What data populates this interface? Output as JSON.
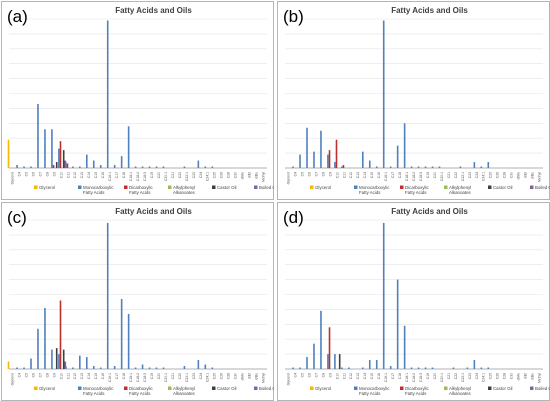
{
  "categories": [
    "Glycerol",
    "C4",
    "C5",
    "C6",
    "C7",
    "C8",
    "C9",
    "C10",
    "C11",
    "C12",
    "C13",
    "C14",
    "C15",
    "C16",
    "C16:1",
    "C17",
    "C18",
    "C18:1",
    "C18:2",
    "C18:3",
    "C19",
    "C20",
    "C20:1",
    "C21",
    "C22",
    "C22:1",
    "C23",
    "C24",
    "C24:1",
    "C25",
    "C26",
    "C28",
    "C30",
    "diMe",
    "diEt",
    "diBu",
    "Methyl"
  ],
  "legend": [
    {
      "name": "Glycerol",
      "color": "#f5b800"
    },
    {
      "name": "Monocarboxylic Fatty Acids",
      "color": "#4f81bd"
    },
    {
      "name": "Dicarboxylic Fatty Acids",
      "color": "#c0302b"
    },
    {
      "name": "Alkylphenyl Alkanoates",
      "color": "#9bbb59"
    },
    {
      "name": "Castor Oil",
      "color": "#3f3f3f"
    },
    {
      "name": "Boiled Oils",
      "color": "#8064a2"
    }
  ],
  "chart_data": [
    {
      "type": "bar",
      "title": "Fatty Acids and Oils",
      "panel_label": "(a)",
      "series": [
        {
          "name": "Glycerol",
          "values": [
            19,
            0,
            0,
            0,
            0,
            0,
            0,
            0,
            0,
            0,
            0,
            0,
            0,
            0,
            0,
            0,
            0,
            0,
            0,
            0,
            0,
            0,
            0,
            0,
            0,
            0,
            0,
            0,
            0,
            0,
            0,
            0,
            0,
            0,
            0,
            0,
            0
          ]
        },
        {
          "name": "Monocarboxylic Fatty Acids",
          "values": [
            0,
            2,
            1,
            1,
            43,
            26,
            26,
            13,
            4,
            1,
            1,
            9,
            5,
            2,
            99,
            2,
            8,
            28,
            1,
            1,
            1,
            1,
            1,
            0,
            0,
            1,
            0,
            5,
            1,
            1,
            0,
            0,
            0,
            0,
            0,
            0,
            0
          ]
        },
        {
          "name": "Dicarboxylic Fatty Acids",
          "values": [
            0,
            0,
            0,
            0,
            0,
            0,
            2,
            18,
            3,
            0,
            0,
            0,
            0,
            0,
            0,
            0,
            0,
            0,
            0,
            0,
            0,
            0,
            0,
            0,
            0,
            0,
            0,
            0,
            0,
            0,
            0,
            0,
            0,
            0,
            0,
            0,
            0
          ]
        },
        {
          "name": "Alkylphenyl Alkanoates",
          "values": [
            0,
            0,
            0,
            0,
            0,
            0,
            0,
            0,
            0,
            0,
            0,
            0,
            0,
            0,
            0,
            0,
            0,
            0,
            0,
            0,
            0,
            0,
            0,
            0,
            0,
            0,
            0,
            0,
            0,
            0,
            0,
            0,
            0,
            0,
            0,
            0,
            0
          ]
        },
        {
          "name": "Castor Oil",
          "values": [
            0,
            0,
            0,
            0,
            0,
            0,
            4,
            12,
            0,
            0,
            0,
            0,
            0,
            0,
            0,
            0,
            0,
            0,
            0,
            0,
            0,
            0,
            0,
            0,
            0,
            0,
            0,
            0,
            0,
            0,
            0,
            0,
            0,
            0,
            0,
            0,
            0
          ]
        },
        {
          "name": "Boiled Oils",
          "values": [
            0,
            0,
            0,
            0,
            0,
            0,
            0,
            5,
            0,
            0,
            0,
            0,
            0,
            0,
            0,
            0,
            0,
            0,
            0,
            0,
            0,
            0,
            0,
            0,
            0,
            0,
            0,
            0,
            0,
            0,
            0,
            0,
            0,
            0,
            0,
            0,
            0
          ]
        }
      ]
    },
    {
      "type": "bar",
      "title": "Fatty Acids and Oils",
      "panel_label": "(b)",
      "series": [
        {
          "name": "Glycerol",
          "values": [
            0,
            0,
            0,
            0,
            0,
            0,
            0,
            0,
            0,
            0,
            0,
            0,
            0,
            0,
            0,
            0,
            0,
            0,
            0,
            0,
            0,
            0,
            0,
            0,
            0,
            0,
            0,
            0,
            0,
            0,
            0,
            0,
            0,
            0,
            0,
            0,
            0
          ]
        },
        {
          "name": "Monocarboxylic Fatty Acids",
          "values": [
            0,
            1,
            9,
            27,
            11,
            25,
            9,
            4,
            1,
            0,
            0,
            11,
            5,
            1,
            99,
            1,
            15,
            30,
            1,
            1,
            1,
            1,
            1,
            0,
            0,
            1,
            0,
            4,
            1,
            4,
            0,
            0,
            0,
            0,
            0,
            0,
            0
          ]
        },
        {
          "name": "Dicarboxylic Fatty Acids",
          "values": [
            0,
            0,
            0,
            0,
            0,
            0,
            12,
            19,
            2,
            0,
            0,
            0,
            0,
            0,
            0,
            0,
            0,
            0,
            0,
            0,
            0,
            0,
            0,
            0,
            0,
            0,
            0,
            0,
            0,
            0,
            0,
            0,
            0,
            0,
            0,
            0,
            0
          ]
        },
        {
          "name": "Alkylphenyl Alkanoates",
          "values": [
            0,
            0,
            0,
            0,
            0,
            0,
            0,
            0,
            0,
            0,
            0,
            0,
            0,
            0,
            0,
            0,
            0,
            0,
            0,
            0,
            0,
            0,
            0,
            0,
            0,
            0,
            0,
            0,
            0,
            0,
            0,
            0,
            0,
            0,
            0,
            0,
            0
          ]
        },
        {
          "name": "Castor Oil",
          "values": [
            0,
            0,
            0,
            0,
            0,
            0,
            0,
            0,
            0,
            0,
            0,
            0,
            0,
            0,
            0,
            0,
            0,
            0,
            0,
            0,
            0,
            0,
            0,
            0,
            0,
            0,
            0,
            0,
            0,
            0,
            0,
            0,
            0,
            0,
            0,
            0,
            0
          ]
        },
        {
          "name": "Boiled Oils",
          "values": [
            0,
            0,
            0,
            0,
            0,
            0,
            0,
            0,
            0,
            0,
            0,
            0,
            0,
            0,
            0,
            0,
            0,
            0,
            0,
            0,
            0,
            0,
            0,
            0,
            0,
            0,
            0,
            0,
            0,
            0,
            0,
            0,
            0,
            0,
            0,
            0,
            0
          ]
        }
      ]
    },
    {
      "type": "bar",
      "title": "Fatty Acids and Oils",
      "panel_label": "(c)",
      "series": [
        {
          "name": "Glycerol",
          "values": [
            5,
            0,
            0,
            0,
            0,
            0,
            0,
            0,
            0,
            0,
            0,
            0,
            0,
            0,
            0,
            0,
            0,
            0,
            0,
            0,
            0,
            0,
            0,
            0,
            0,
            0,
            0,
            0,
            0,
            0,
            0,
            0,
            0,
            0,
            0,
            0,
            0
          ]
        },
        {
          "name": "Monocarboxylic Fatty Acids",
          "values": [
            0,
            1,
            1,
            7,
            27,
            41,
            13,
            10,
            2,
            1,
            9,
            8,
            2,
            1,
            98,
            2,
            47,
            37,
            1,
            3,
            1,
            1,
            1,
            0,
            0,
            2,
            0,
            6,
            3,
            1,
            0,
            0,
            0,
            0,
            0,
            0,
            0
          ]
        },
        {
          "name": "Dicarboxylic Fatty Acids",
          "values": [
            0,
            0,
            0,
            0,
            0,
            0,
            0,
            46,
            0,
            0,
            0,
            0,
            0,
            0,
            0,
            0,
            0,
            0,
            0,
            0,
            0,
            0,
            0,
            0,
            0,
            0,
            0,
            0,
            0,
            0,
            0,
            0,
            0,
            0,
            0,
            0,
            0
          ]
        },
        {
          "name": "Alkylphenyl Alkanoates",
          "values": [
            0,
            0,
            0,
            0,
            0,
            0,
            0,
            0,
            0,
            0,
            0,
            0,
            0,
            0,
            0,
            0,
            0,
            0,
            0,
            0,
            0,
            0,
            0,
            0,
            0,
            0,
            0,
            0,
            0,
            0,
            0,
            0,
            0,
            0,
            0,
            0,
            0
          ]
        },
        {
          "name": "Castor Oil",
          "values": [
            0,
            0,
            0,
            0,
            0,
            0,
            14,
            13,
            0,
            0,
            0,
            0,
            0,
            0,
            0,
            0,
            0,
            0,
            0,
            0,
            0,
            0,
            0,
            0,
            0,
            0,
            0,
            0,
            0,
            0,
            0,
            0,
            0,
            0,
            0,
            0,
            0
          ]
        },
        {
          "name": "Boiled Oils",
          "values": [
            0,
            0,
            0,
            0,
            0,
            0,
            0,
            5,
            0,
            0,
            0,
            0,
            0,
            0,
            0,
            0,
            0,
            0,
            0,
            0,
            0,
            0,
            0,
            0,
            0,
            0,
            0,
            0,
            0,
            0,
            0,
            0,
            0,
            0,
            0,
            0,
            0
          ]
        }
      ]
    },
    {
      "type": "bar",
      "title": "Fatty Acids and Oils",
      "panel_label": "(d)",
      "series": [
        {
          "name": "Glycerol",
          "values": [
            0,
            0,
            0,
            0,
            0,
            0,
            0,
            0,
            0,
            0,
            0,
            0,
            0,
            0,
            0,
            0,
            0,
            0,
            0,
            0,
            0,
            0,
            0,
            0,
            0,
            0,
            0,
            0,
            0,
            0,
            0,
            0,
            0,
            0,
            0,
            0,
            0
          ]
        },
        {
          "name": "Monocarboxylic Fatty Acids",
          "values": [
            0,
            1,
            1,
            8,
            17,
            39,
            10,
            10,
            1,
            1,
            0,
            1,
            6,
            6,
            98,
            2,
            60,
            29,
            1,
            1,
            1,
            1,
            0,
            0,
            1,
            0,
            1,
            6,
            1,
            1,
            0,
            0,
            0,
            0,
            0,
            0,
            0
          ]
        },
        {
          "name": "Dicarboxylic Fatty Acids",
          "values": [
            0,
            0,
            0,
            0,
            0,
            0,
            28,
            0,
            0,
            0,
            0,
            0,
            0,
            0,
            0,
            0,
            0,
            0,
            0,
            0,
            0,
            0,
            0,
            0,
            0,
            0,
            0,
            0,
            0,
            0,
            0,
            0,
            0,
            0,
            0,
            0,
            0
          ]
        },
        {
          "name": "Alkylphenyl Alkanoates",
          "values": [
            0,
            0,
            0,
            0,
            0,
            0,
            0,
            0,
            0,
            0,
            0,
            0,
            0,
            0,
            0,
            0,
            0,
            0,
            0,
            0,
            0,
            0,
            0,
            0,
            0,
            0,
            0,
            0,
            0,
            0,
            0,
            0,
            0,
            0,
            0,
            0,
            0
          ]
        },
        {
          "name": "Castor Oil",
          "values": [
            0,
            0,
            0,
            0,
            0,
            0,
            0,
            10,
            0,
            0,
            0,
            0,
            0,
            0,
            0,
            0,
            0,
            0,
            0,
            0,
            0,
            0,
            0,
            0,
            0,
            0,
            0,
            0,
            0,
            0,
            0,
            0,
            0,
            0,
            0,
            0,
            0
          ]
        },
        {
          "name": "Boiled Oils",
          "values": [
            0,
            0,
            0,
            0,
            0,
            0,
            0,
            0,
            0,
            0,
            0,
            0,
            0,
            0,
            0,
            0,
            0,
            0,
            0,
            0,
            0,
            0,
            0,
            0,
            0,
            0,
            0,
            0,
            0,
            0,
            0,
            0,
            0,
            0,
            0,
            0,
            0
          ]
        }
      ]
    }
  ]
}
